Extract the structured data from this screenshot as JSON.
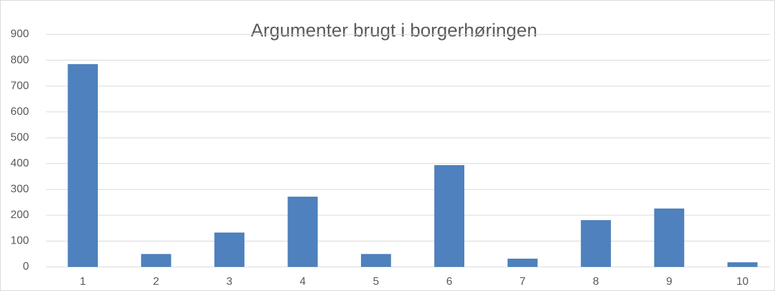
{
  "chart_data": {
    "type": "bar",
    "title": "Argumenter brugt i borgerhøringen",
    "categories": [
      "1",
      "2",
      "3",
      "4",
      "5",
      "6",
      "7",
      "8",
      "9",
      "10"
    ],
    "values": [
      785,
      50,
      133,
      272,
      50,
      394,
      32,
      181,
      226,
      18
    ],
    "color": "#4e81bd",
    "ylim": [
      0,
      900
    ],
    "yticks": [
      0,
      100,
      200,
      300,
      400,
      500,
      600,
      700,
      800,
      900
    ],
    "grid": true
  }
}
